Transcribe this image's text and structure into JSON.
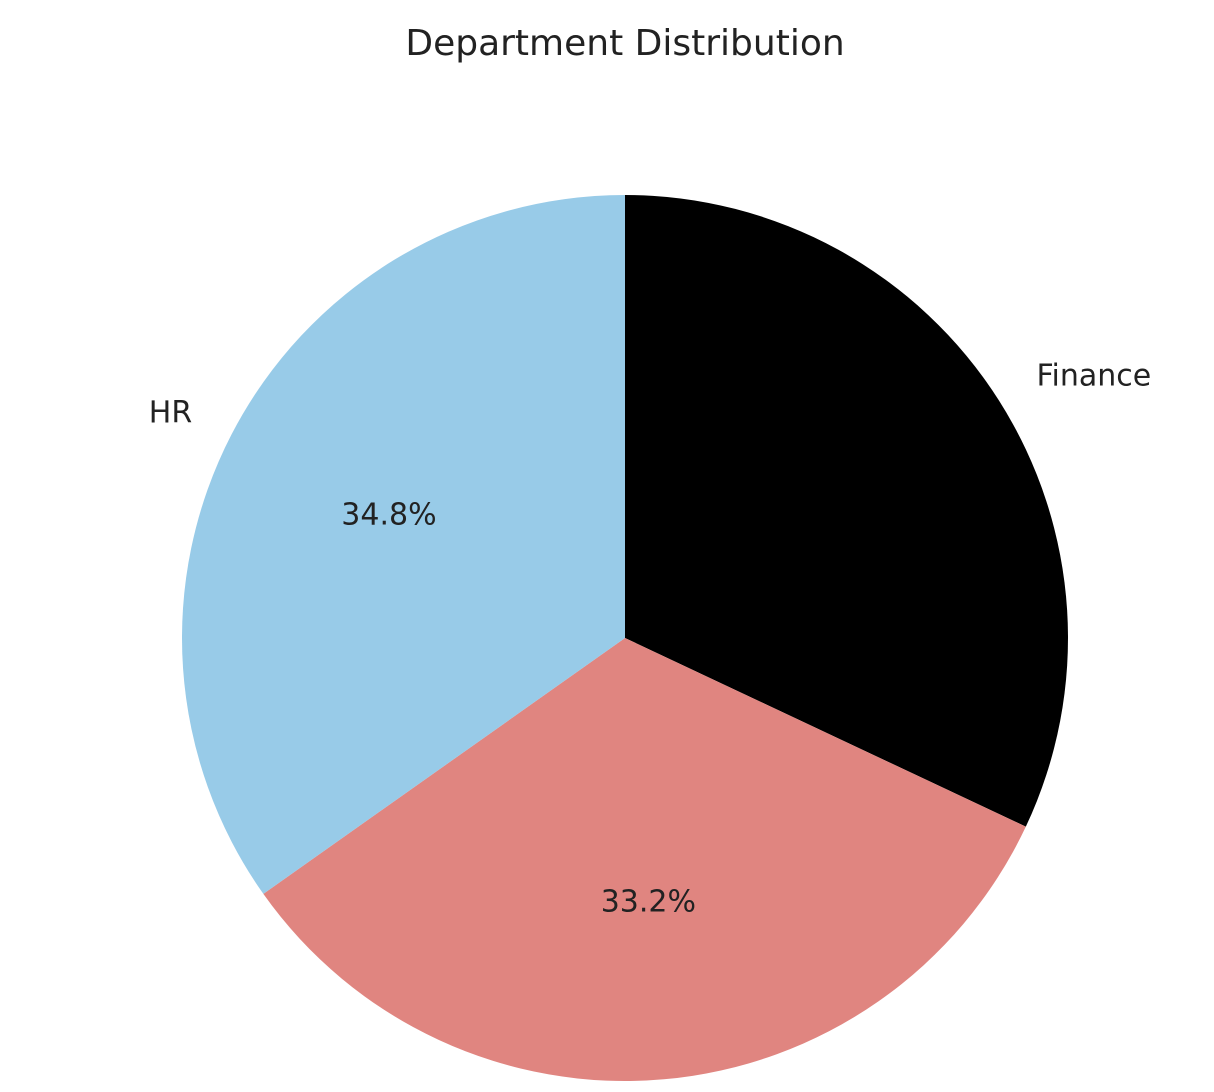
{
  "chart_data": {
    "type": "pie",
    "title": "Department Distribution",
    "categories": [
      "Finance",
      null,
      "HR"
    ],
    "values": [
      32.0,
      33.2,
      34.8
    ],
    "value_labels": [
      null,
      "33.2%",
      "34.8%"
    ],
    "colors": [
      "#000000",
      "#e08580",
      "#98cbe8"
    ]
  }
}
